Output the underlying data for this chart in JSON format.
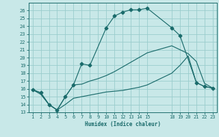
{
  "xlabel": "Humidex (Indice chaleur)",
  "bg_color": "#c8e8e8",
  "grid_color": "#99cccc",
  "line_color": "#1a6b6b",
  "xlim": [
    0.5,
    23.5
  ],
  "ylim": [
    13,
    27
  ],
  "xticks": [
    1,
    2,
    3,
    4,
    5,
    6,
    7,
    8,
    9,
    10,
    11,
    12,
    13,
    14,
    15,
    18,
    19,
    20,
    21,
    22,
    23
  ],
  "yticks": [
    13,
    14,
    15,
    16,
    17,
    18,
    19,
    20,
    21,
    22,
    23,
    24,
    25,
    26
  ],
  "curve1_x": [
    1,
    2,
    3,
    4,
    5,
    6,
    7,
    8,
    10,
    11,
    12,
    13,
    14,
    15,
    18,
    19,
    21,
    22,
    23
  ],
  "curve1_y": [
    15.9,
    15.5,
    14.0,
    13.3,
    15.0,
    16.5,
    19.2,
    19.0,
    23.8,
    25.3,
    25.8,
    26.1,
    26.1,
    26.3,
    23.8,
    22.8,
    16.8,
    16.3,
    16.1
  ],
  "curve2_x": [
    1,
    2,
    3,
    4,
    5,
    6,
    7,
    8,
    9,
    10,
    11,
    12,
    13,
    14,
    15,
    18,
    19,
    20,
    21,
    22,
    23
  ],
  "curve2_y": [
    15.9,
    15.5,
    14.0,
    13.3,
    15.0,
    16.5,
    16.6,
    17.0,
    17.3,
    17.7,
    18.2,
    18.8,
    19.4,
    20.0,
    20.6,
    21.5,
    21.0,
    20.5,
    19.5,
    16.7,
    16.1
  ],
  "curve3_x": [
    1,
    2,
    3,
    4,
    5,
    6,
    7,
    8,
    9,
    10,
    11,
    12,
    13,
    14,
    15,
    18,
    19,
    20,
    21,
    22,
    23
  ],
  "curve3_y": [
    15.9,
    15.3,
    14.0,
    13.3,
    14.0,
    14.8,
    15.0,
    15.2,
    15.4,
    15.6,
    15.7,
    15.8,
    16.0,
    16.2,
    16.5,
    18.0,
    19.0,
    20.2,
    16.8,
    16.3,
    16.1
  ]
}
